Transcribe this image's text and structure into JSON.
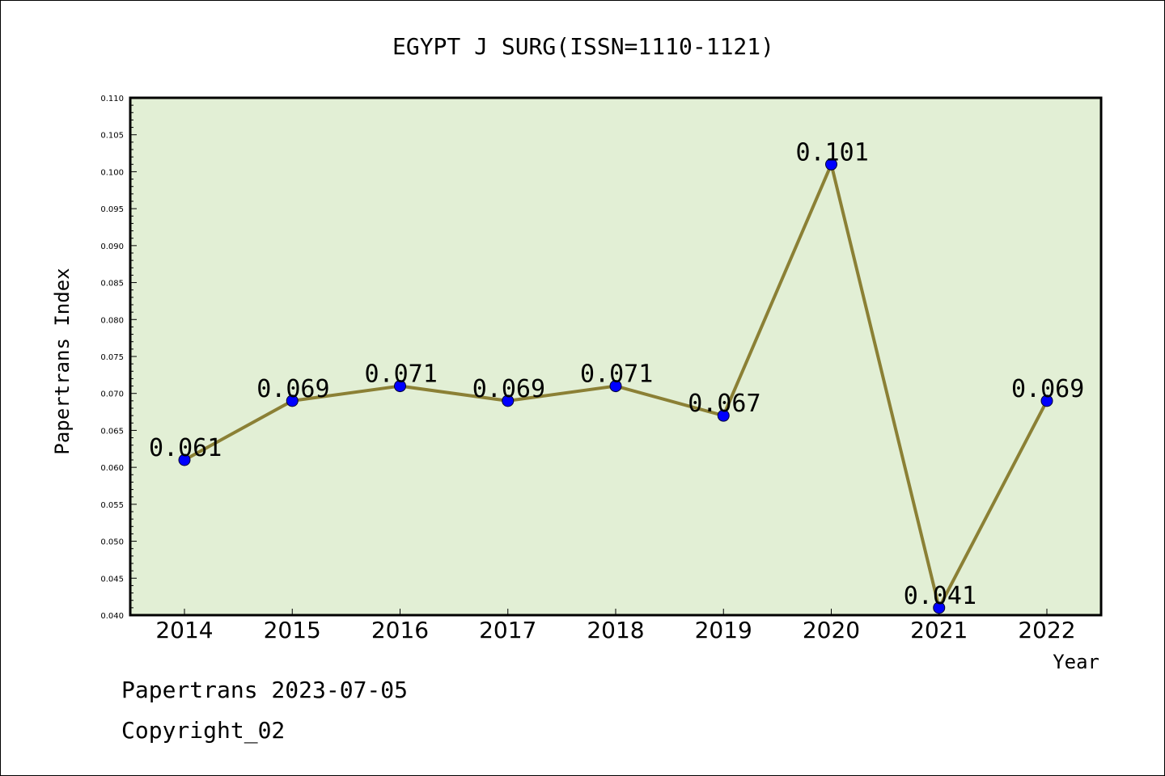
{
  "chart_data": {
    "type": "line",
    "title": "EGYPT J SURG(ISSN=1110-1121)",
    "xlabel": "Year",
    "ylabel": "Papertrans Index",
    "x": [
      "2014",
      "2015",
      "2016",
      "2017",
      "2018",
      "2019",
      "2020",
      "2021",
      "2022"
    ],
    "values": [
      0.061,
      0.069,
      0.071,
      0.069,
      0.071,
      0.067,
      0.101,
      0.041,
      0.069
    ],
    "data_labels": [
      "0.061",
      "0.069",
      "0.071",
      "0.069",
      "0.071",
      "0.067",
      "0.101",
      "0.041",
      "0.069"
    ],
    "ylim": [
      0.04,
      0.11
    ],
    "yticks": [
      "0.040",
      "0.045",
      "0.050",
      "0.055",
      "0.060",
      "0.065",
      "0.070",
      "0.075",
      "0.080",
      "0.085",
      "0.090",
      "0.095",
      "0.100",
      "0.105",
      "0.110"
    ],
    "grid": false,
    "legend": "none",
    "colors": {
      "plot_background": "#e2efd5",
      "line": "#8b8035",
      "marker": "#0000ff"
    }
  },
  "footer": {
    "date_text": "Papertrans 2023-07-05",
    "copyright_text": "Copyright_02"
  }
}
